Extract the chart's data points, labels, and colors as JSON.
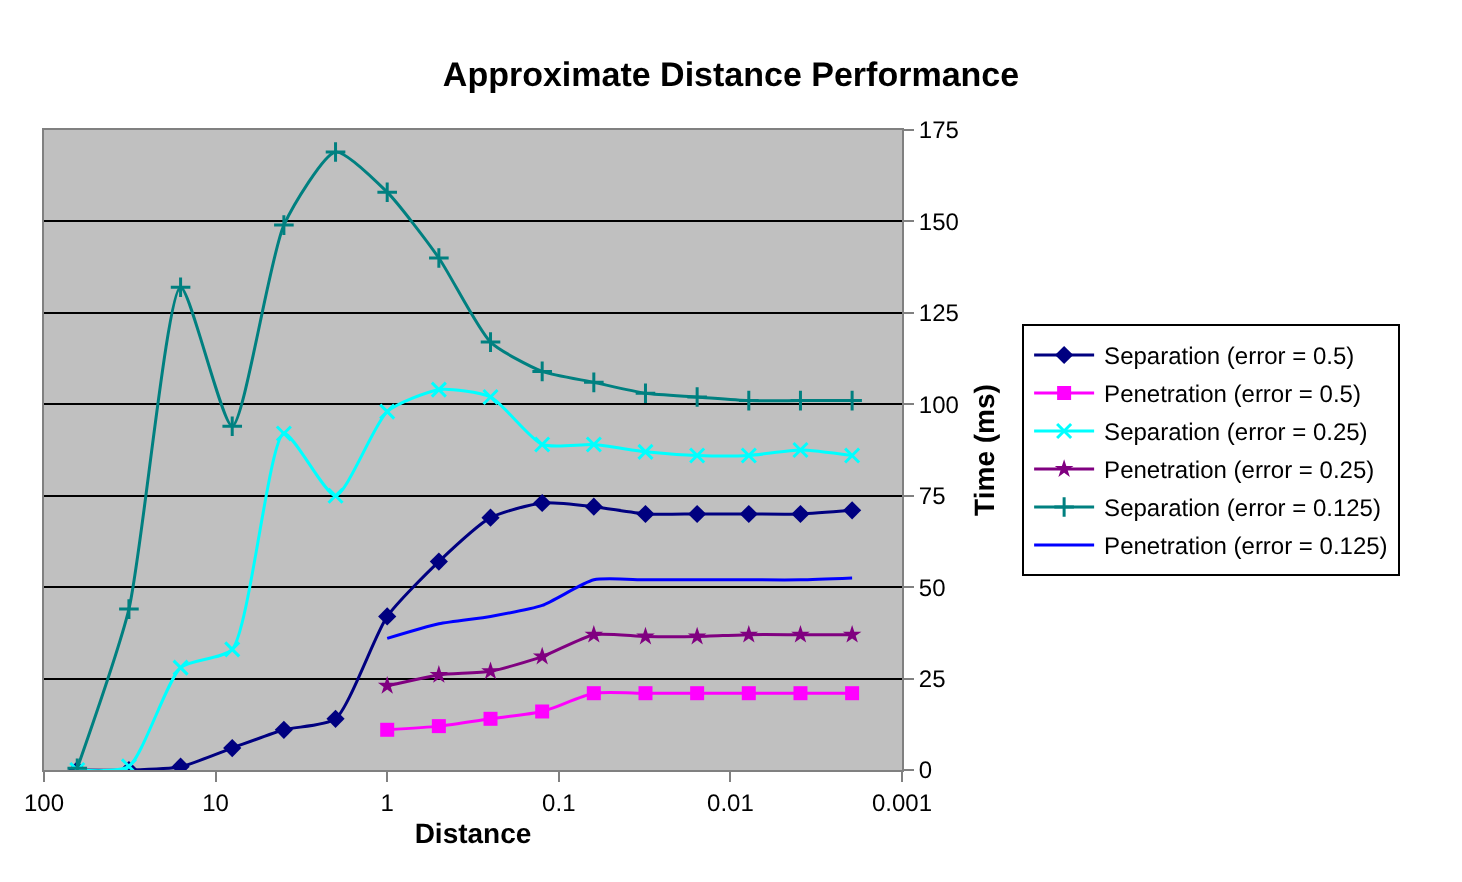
{
  "chart_data": {
    "type": "line",
    "title": "Approximate Distance Performance",
    "xlabel": "Distance",
    "ylabel": "Time (ms)",
    "x": [
      64,
      32,
      16,
      8,
      4,
      2,
      1,
      0.5,
      0.25,
      0.125,
      0.0625,
      0.03125,
      0.015625,
      0.0078125,
      0.00390625,
      0.001953125
    ],
    "series": [
      {
        "name": "Separation (error = 0.5)",
        "color": "#000080",
        "marker": "diamond",
        "values": [
          0,
          0,
          0.9,
          6,
          11,
          14,
          42,
          57,
          69,
          73,
          72,
          70,
          70,
          70,
          70,
          71
        ]
      },
      {
        "name": "Penetration (error = 0.5)",
        "color": "#ff00ff",
        "marker": "square",
        "x": [
          1,
          0.5,
          0.25,
          0.125,
          0.0625,
          0.03125,
          0.015625,
          0.0078125,
          0.00390625,
          0.001953125
        ],
        "values": [
          11,
          12,
          14,
          16,
          21,
          21,
          21,
          21,
          21,
          21
        ]
      },
      {
        "name": "Separation (error = 0.25)",
        "color": "#00ffff",
        "marker": "cross",
        "values": [
          0,
          1,
          28,
          33,
          92,
          75,
          98,
          104,
          102,
          89,
          89,
          87,
          86,
          86,
          87.5,
          86
        ]
      },
      {
        "name": "Penetration (error = 0.25)",
        "color": "#800080",
        "marker": "star",
        "x": [
          1,
          0.5,
          0.25,
          0.125,
          0.0625,
          0.03125,
          0.015625,
          0.0078125,
          0.00390625,
          0.001953125
        ],
        "values": [
          23,
          26,
          27,
          31,
          37,
          36.5,
          36.5,
          37,
          37,
          37
        ]
      },
      {
        "name": "Separation (error = 0.125)",
        "color": "#008080",
        "marker": "plus",
        "values": [
          0.5,
          44,
          132,
          94,
          149,
          169,
          158,
          140,
          117,
          109,
          106,
          103,
          102,
          101,
          101,
          101
        ]
      },
      {
        "name": "Penetration (error = 0.125)",
        "color": "#0000ff",
        "marker": "none",
        "x": [
          1,
          0.5,
          0.25,
          0.125,
          0.0625,
          0.03125,
          0.015625,
          0.0078125,
          0.00390625,
          0.001953125
        ],
        "values": [
          36,
          40,
          42,
          45,
          52,
          52,
          52,
          52,
          52,
          52.5
        ]
      }
    ],
    "log": "x",
    "xlim": [
      100,
      0.001
    ],
    "xticks": [
      100,
      10,
      1,
      0.1,
      0.01,
      0.001
    ],
    "ylim": [
      0,
      175
    ],
    "yticks": [
      0,
      25,
      50,
      75,
      100,
      125,
      150,
      175
    ],
    "grid": "y",
    "legend": "right"
  }
}
